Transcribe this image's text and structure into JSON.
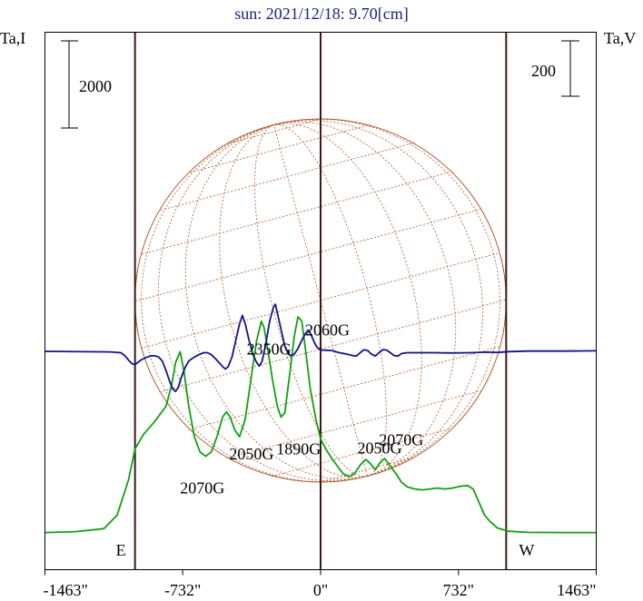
{
  "chart_data": {
    "type": "line",
    "title": "sun: 2021/12/18: 9.70[cm]",
    "ylabel_left": "Ta,I",
    "ylabel_right": "Ta,V",
    "scalebar_left": "2000",
    "scalebar_right": "200",
    "xlim": [
      -1463,
      1463
    ],
    "x_ticks": [
      -1463,
      -732,
      0,
      732,
      1463
    ],
    "x_tick_labels": [
      "-1463\"",
      "-732\"",
      "0\"",
      "732\"",
      "1463\""
    ],
    "limb_markers": [
      {
        "x": -985,
        "label": "E"
      },
      {
        "x": 0,
        "label": ""
      },
      {
        "x": 985,
        "label": "W"
      }
    ],
    "colors": {
      "I": "#12a012",
      "V": "#14148c",
      "disk": "#b05a30",
      "frame": "#000000",
      "marker": "#3a1a1a",
      "title": "#1a237e"
    },
    "grid": false,
    "series": [
      {
        "key": "I",
        "points": [
          [
            -1463,
            -200
          ],
          [
            -1300,
            -180
          ],
          [
            -1150,
            -110
          ],
          [
            -1080,
            200
          ],
          [
            -1020,
            1000
          ],
          [
            -985,
            1720
          ],
          [
            -940,
            2050
          ],
          [
            -880,
            2350
          ],
          [
            -820,
            2700
          ],
          [
            -790,
            3200
          ],
          [
            -770,
            3700
          ],
          [
            -745,
            3950
          ],
          [
            -725,
            3500
          ],
          [
            -700,
            2700
          ],
          [
            -670,
            2000
          ],
          [
            -640,
            1650
          ],
          [
            -610,
            1550
          ],
          [
            -580,
            1650
          ],
          [
            -550,
            2000
          ],
          [
            -520,
            2450
          ],
          [
            -500,
            2570
          ],
          [
            -480,
            2450
          ],
          [
            -455,
            2150
          ],
          [
            -430,
            2000
          ],
          [
            -400,
            2400
          ],
          [
            -370,
            3300
          ],
          [
            -340,
            4200
          ],
          [
            -315,
            4650
          ],
          [
            -300,
            4500
          ],
          [
            -280,
            4000
          ],
          [
            -255,
            3300
          ],
          [
            -230,
            2700
          ],
          [
            -210,
            2450
          ],
          [
            -190,
            2550
          ],
          [
            -165,
            3400
          ],
          [
            -140,
            4300
          ],
          [
            -120,
            4750
          ],
          [
            -100,
            4650
          ],
          [
            -80,
            4000
          ],
          [
            -55,
            3100
          ],
          [
            -25,
            2400
          ],
          [
            0,
            1950
          ],
          [
            30,
            1700
          ],
          [
            60,
            1500
          ],
          [
            90,
            1320
          ],
          [
            120,
            1150
          ],
          [
            150,
            1080
          ],
          [
            180,
            1150
          ],
          [
            210,
            1350
          ],
          [
            240,
            1480
          ],
          [
            265,
            1380
          ],
          [
            290,
            1240
          ],
          [
            315,
            1400
          ],
          [
            340,
            1500
          ],
          [
            370,
            1320
          ],
          [
            400,
            1150
          ],
          [
            430,
            950
          ],
          [
            460,
            850
          ],
          [
            500,
            800
          ],
          [
            540,
            780
          ],
          [
            580,
            800
          ],
          [
            620,
            820
          ],
          [
            660,
            800
          ],
          [
            700,
            820
          ],
          [
            740,
            860
          ],
          [
            780,
            880
          ],
          [
            810,
            800
          ],
          [
            840,
            500
          ],
          [
            870,
            200
          ],
          [
            900,
            50
          ],
          [
            940,
            -100
          ],
          [
            1000,
            -170
          ],
          [
            1100,
            -195
          ],
          [
            1300,
            -200
          ],
          [
            1463,
            -200
          ]
        ]
      },
      {
        "key": "V",
        "points": [
          [
            -1463,
            0
          ],
          [
            -1120,
            -2
          ],
          [
            -1060,
            -5
          ],
          [
            -1040,
            -15
          ],
          [
            -1015,
            -35
          ],
          [
            -1000,
            -45
          ],
          [
            -985,
            -48
          ],
          [
            -970,
            -40
          ],
          [
            -950,
            -30
          ],
          [
            -925,
            -22
          ],
          [
            -900,
            -16
          ],
          [
            -880,
            -16
          ],
          [
            -860,
            -20
          ],
          [
            -840,
            -35
          ],
          [
            -820,
            -70
          ],
          [
            -800,
            -110
          ],
          [
            -785,
            -135
          ],
          [
            -770,
            -145
          ],
          [
            -755,
            -130
          ],
          [
            -740,
            -95
          ],
          [
            -720,
            -60
          ],
          [
            -700,
            -35
          ],
          [
            -680,
            -25
          ],
          [
            -660,
            -17
          ],
          [
            -640,
            -10
          ],
          [
            -620,
            -5
          ],
          [
            -600,
            -5
          ],
          [
            -580,
            -12
          ],
          [
            -560,
            -25
          ],
          [
            -540,
            -40
          ],
          [
            -520,
            -55
          ],
          [
            -505,
            -64
          ],
          [
            -490,
            -55
          ],
          [
            -470,
            -20
          ],
          [
            -450,
            40
          ],
          [
            -430,
            100
          ],
          [
            -415,
            130
          ],
          [
            -400,
            100
          ],
          [
            -380,
            40
          ],
          [
            -360,
            -10
          ],
          [
            -340,
            -40
          ],
          [
            -325,
            -53
          ],
          [
            -310,
            -35
          ],
          [
            -290,
            30
          ],
          [
            -270,
            110
          ],
          [
            -250,
            160
          ],
          [
            -240,
            170
          ],
          [
            -230,
            140
          ],
          [
            -210,
            80
          ],
          [
            -190,
            20
          ],
          [
            -170,
            -10
          ],
          [
            -160,
            -15
          ],
          [
            -140,
            -10
          ],
          [
            -120,
            10
          ],
          [
            -100,
            40
          ],
          [
            -80,
            65
          ],
          [
            -65,
            77
          ],
          [
            -50,
            60
          ],
          [
            -35,
            35
          ],
          [
            -20,
            15
          ],
          [
            0,
            5
          ],
          [
            30,
            4
          ],
          [
            60,
            3
          ],
          [
            100,
            -5
          ],
          [
            140,
            -10
          ],
          [
            170,
            -15
          ],
          [
            190,
            -17
          ],
          [
            210,
            -5
          ],
          [
            230,
            6
          ],
          [
            250,
            3
          ],
          [
            270,
            -10
          ],
          [
            290,
            -17
          ],
          [
            310,
            -5
          ],
          [
            330,
            6
          ],
          [
            350,
            5
          ],
          [
            370,
            -5
          ],
          [
            390,
            -15
          ],
          [
            410,
            -17
          ],
          [
            430,
            -8
          ],
          [
            460,
            -5
          ],
          [
            500,
            -5
          ],
          [
            600,
            -5
          ],
          [
            700,
            -6
          ],
          [
            800,
            -5
          ],
          [
            880,
            -3
          ],
          [
            940,
            -4
          ],
          [
            1000,
            -1
          ],
          [
            1100,
            1
          ],
          [
            1300,
            1
          ],
          [
            1463,
            2
          ]
        ]
      }
    ],
    "annotations": [
      {
        "text": "2060G",
        "x": -82,
        "I": 4320
      },
      {
        "text": "2350G",
        "x": -392,
        "I": 3890
      },
      {
        "text": "2050G",
        "x": -485,
        "I": 1480
      },
      {
        "text": "1890G",
        "x": -235,
        "I": 1590
      },
      {
        "text": "2070G",
        "x": -746,
        "I": 700
      },
      {
        "text": "2050G",
        "x": 195,
        "I": 1610
      },
      {
        "text": "2070G",
        "x": 310,
        "I": 1800
      }
    ]
  }
}
